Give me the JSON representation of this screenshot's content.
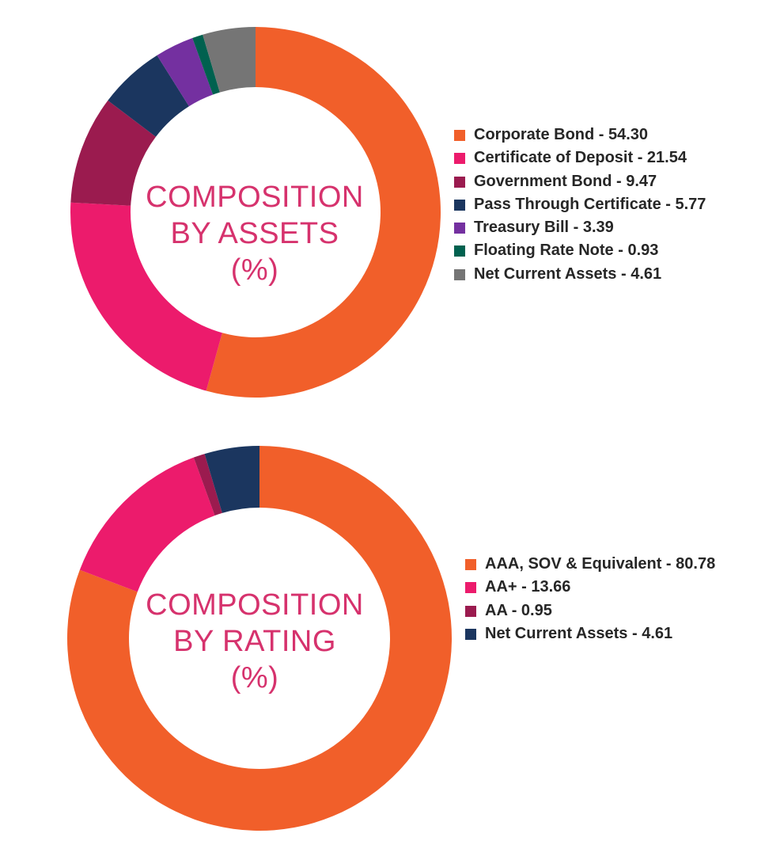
{
  "chart_data": [
    {
      "type": "pie",
      "variant": "donut",
      "title": "COMPOSITION BY ASSETS (%)",
      "title_lines": [
        "COMPOSITION",
        "BY ASSETS",
        "(%)"
      ],
      "categories": [
        "Corporate Bond",
        "Certificate of Deposit",
        "Government Bond",
        "Pass Through Certificate",
        "Treasury Bill",
        "Floating Rate Note",
        "Net Current Assets"
      ],
      "values": [
        54.3,
        21.54,
        9.47,
        5.77,
        3.39,
        0.93,
        4.61
      ],
      "colors": [
        "#f15f2a",
        "#ec1b6c",
        "#9b1b4f",
        "#1b365f",
        "#7430a0",
        "#00614f",
        "#757575"
      ],
      "legend_labels": [
        "Corporate Bond - 54.30",
        "Certificate of Deposit - 21.54",
        "Government Bond - 9.47",
        "Pass Through Certificate - 5.77",
        "Treasury Bill - 3.39",
        "Floating Rate Note - 0.93",
        "Net Current Assets - 4.61"
      ],
      "legend_placement": "right"
    },
    {
      "type": "pie",
      "variant": "donut",
      "title": "COMPOSITION BY RATING (%)",
      "title_lines": [
        "COMPOSITION",
        "BY RATING",
        "(%)"
      ],
      "categories": [
        "AAA, SOV & Equivalent",
        "AA+",
        "AA",
        "Net Current Assets"
      ],
      "values": [
        80.78,
        13.66,
        0.95,
        4.61
      ],
      "colors": [
        "#f15f2a",
        "#ec1b6c",
        "#9b1b4f",
        "#1b365f"
      ],
      "legend_labels": [
        "AAA, SOV & Equivalent - 80.78",
        "AA+ - 13.66",
        "AA - 0.95",
        "Net Current Assets - 4.61"
      ],
      "legend_placement": "right"
    }
  ]
}
